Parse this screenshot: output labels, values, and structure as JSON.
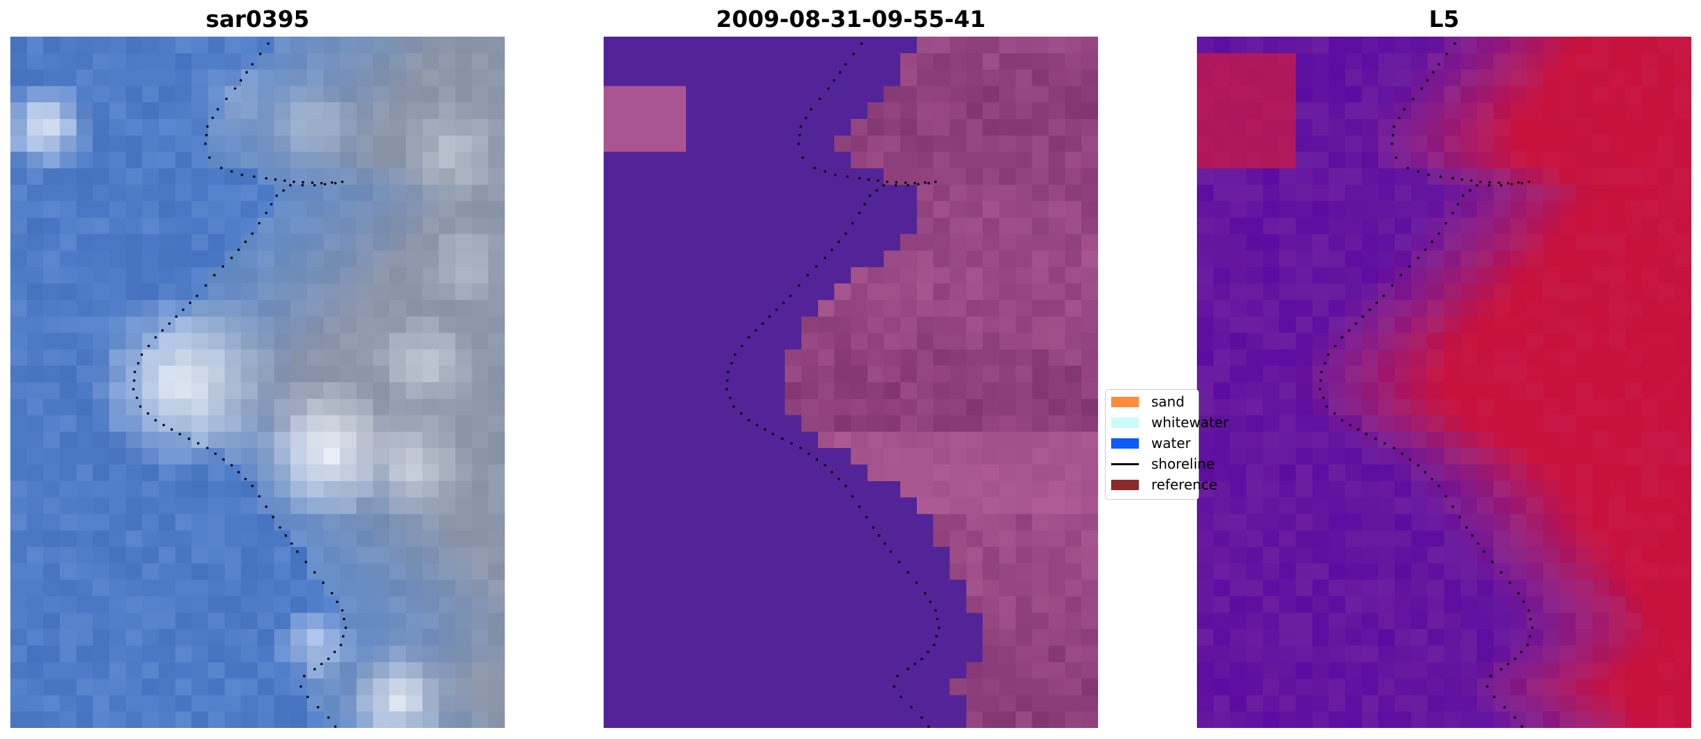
{
  "panels": [
    {
      "id": "rgb",
      "title": "sar0395"
    },
    {
      "id": "classified",
      "title": "2009-08-31-09-55-41"
    },
    {
      "id": "mndwi",
      "title": "L5"
    }
  ],
  "legend": {
    "items": [
      {
        "label": "sand",
        "color": "#ff8c3a",
        "kind": "patch"
      },
      {
        "label": "whitewater",
        "color": "#c8fcfa",
        "kind": "patch"
      },
      {
        "label": "water",
        "color": "#0a5cf5",
        "kind": "patch"
      },
      {
        "label": "shoreline",
        "color": "#000000",
        "kind": "line"
      },
      {
        "label": "reference",
        "color": "#8b2a2a",
        "kind": "patch"
      }
    ]
  },
  "colors": {
    "rgb_water": "#4a78c4",
    "rgb_foam": "#ffffff",
    "classified_water": "#532497",
    "classified_land": "#a8568f",
    "mndwi_water": "#6a159f",
    "mndwi_land": "#c8103c"
  }
}
